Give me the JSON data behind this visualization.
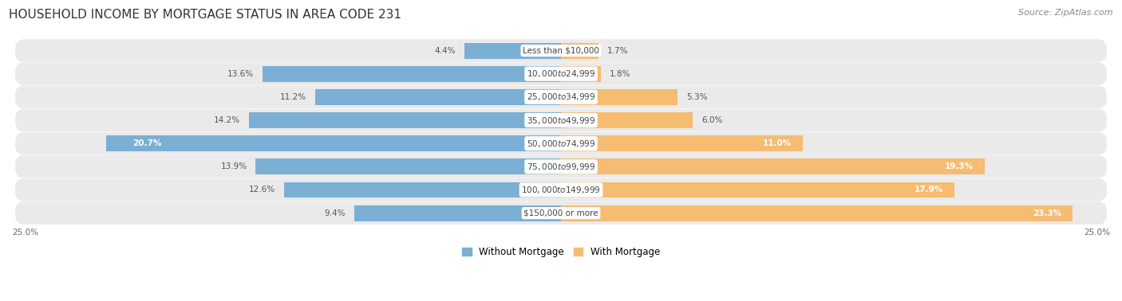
{
  "title": "HOUSEHOLD INCOME BY MORTGAGE STATUS IN AREA CODE 231",
  "source": "Source: ZipAtlas.com",
  "categories": [
    "Less than $10,000",
    "$10,000 to $24,999",
    "$25,000 to $34,999",
    "$35,000 to $49,999",
    "$50,000 to $74,999",
    "$75,000 to $99,999",
    "$100,000 to $149,999",
    "$150,000 or more"
  ],
  "without_mortgage": [
    4.4,
    13.6,
    11.2,
    14.2,
    20.7,
    13.9,
    12.6,
    9.4
  ],
  "with_mortgage": [
    1.7,
    1.8,
    5.3,
    6.0,
    11.0,
    19.3,
    17.9,
    23.3
  ],
  "blue_color": "#7BAFD4",
  "orange_color": "#F5BC72",
  "row_bg_color": "#EAEAEA",
  "title_fontsize": 11,
  "source_fontsize": 8,
  "cat_label_fontsize": 7.5,
  "bar_label_fontsize": 7.5,
  "legend_fontsize": 8.5,
  "axis_max": 25.0,
  "axis_label": "25.0%"
}
